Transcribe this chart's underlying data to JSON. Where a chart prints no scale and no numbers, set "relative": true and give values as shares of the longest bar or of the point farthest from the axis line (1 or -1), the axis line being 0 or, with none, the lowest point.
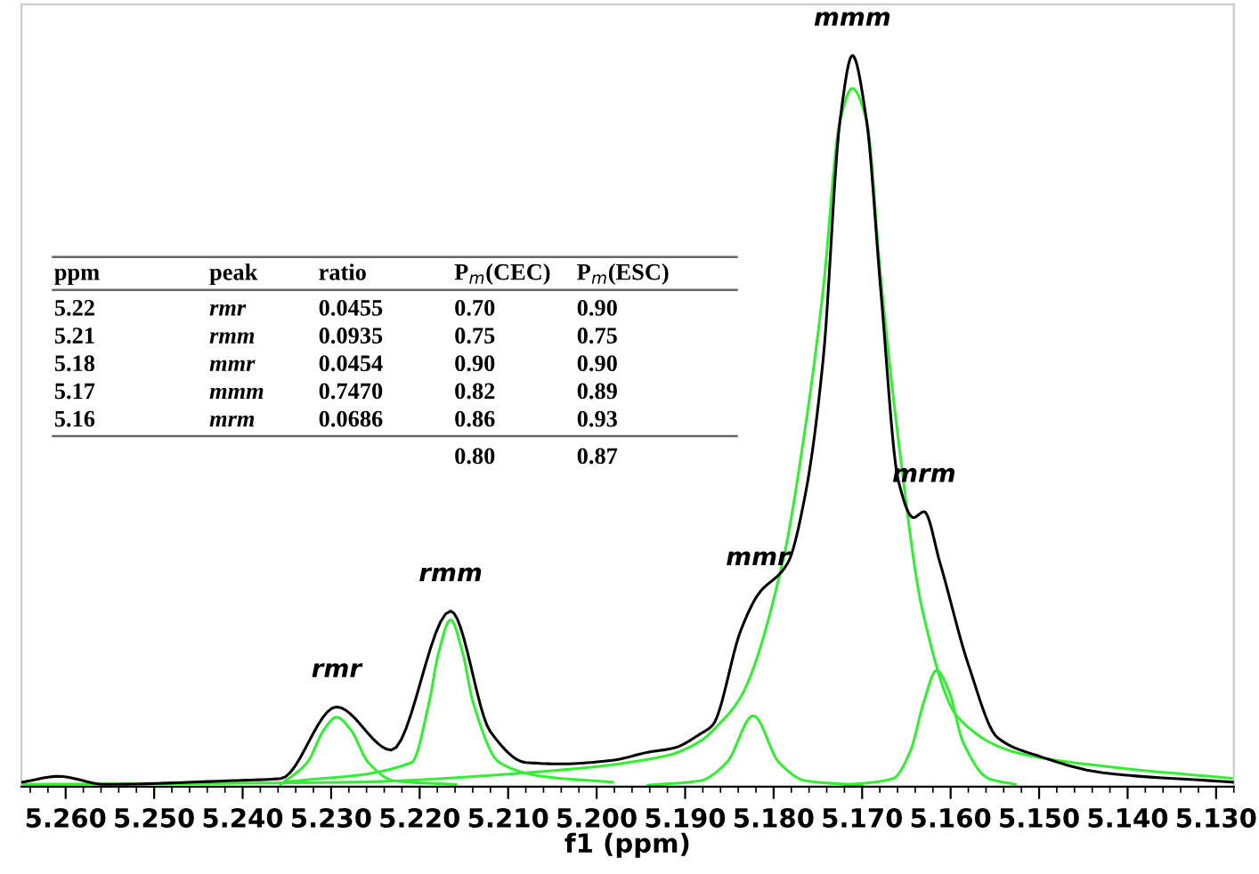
{
  "chart_data": {
    "type": "line",
    "relative": true,
    "xlabel": "f1 (ppm)",
    "xlim": [
      5.265,
      5.128
    ],
    "xticks": [
      {
        "value": 5.26,
        "label": "5.260"
      },
      {
        "value": 5.25,
        "label": "5.250"
      },
      {
        "value": 5.24,
        "label": "5.240"
      },
      {
        "value": 5.23,
        "label": "5.230"
      },
      {
        "value": 5.22,
        "label": "5.220"
      },
      {
        "value": 5.21,
        "label": "5.210"
      },
      {
        "value": 5.2,
        "label": "5.200"
      },
      {
        "value": 5.19,
        "label": "5.190"
      },
      {
        "value": 5.18,
        "label": "5.180"
      },
      {
        "value": 5.17,
        "label": "5.170"
      },
      {
        "value": 5.16,
        "label": "5.160"
      },
      {
        "value": 5.15,
        "label": "5.150"
      },
      {
        "value": 5.14,
        "label": "5.140"
      },
      {
        "value": 5.13,
        "label": "5.130"
      }
    ],
    "tick_labels": "x",
    "grid": false,
    "marker": "none",
    "line_style": "solid",
    "series": [
      {
        "color": "#000000",
        "x": [
          5.2649,
          5.2608,
          5.2555,
          5.2416,
          5.2357,
          5.2294,
          5.2232,
          5.2165,
          5.212,
          5.208,
          5.2041,
          5.1982,
          5.1942,
          5.1912,
          5.1883,
          5.1869,
          5.1837,
          5.1818,
          5.1784,
          5.1764,
          5.1744,
          5.1725,
          5.1711,
          5.1695,
          5.1679,
          5.1659,
          5.1642,
          5.163,
          5.1612,
          5.158,
          5.1547,
          5.1501,
          5.1428,
          5.128
        ],
        "values": [
          0.006,
          0.014,
          0.003,
          0.008,
          0.011,
          0.109,
          0.05,
          0.24,
          0.075,
          0.033,
          0.031,
          0.036,
          0.047,
          0.053,
          0.072,
          0.084,
          0.214,
          0.262,
          0.306,
          0.401,
          0.585,
          0.911,
          1.0,
          0.911,
          0.68,
          0.418,
          0.368,
          0.376,
          0.306,
          0.167,
          0.067,
          0.042,
          0.019,
          0.006
        ]
      },
      {
        "color": "#33ee33",
        "x": [
          5.2357,
          5.2327,
          5.2308,
          5.2294,
          5.2278,
          5.2258,
          5.2229,
          5.2159
        ],
        "values": [
          0.003,
          0.033,
          0.078,
          0.095,
          0.078,
          0.033,
          0.008,
          0.003
        ]
      },
      {
        "color": "#33ee33",
        "x": [
          5.2357,
          5.2209,
          5.2189,
          5.2179,
          5.2165,
          5.2151,
          5.214,
          5.211,
          5.2061,
          5.1982
        ],
        "values": [
          0.005,
          0.033,
          0.117,
          0.181,
          0.228,
          0.181,
          0.117,
          0.033,
          0.014,
          0.006
        ]
      },
      {
        "color": "#33ee33",
        "x": [
          5.2649,
          5.2278,
          5.208,
          5.1922,
          5.1883,
          5.1862,
          5.1837,
          5.179,
          5.1764,
          5.1744,
          5.1725,
          5.1711,
          5.1695,
          5.1679,
          5.1659,
          5.1632,
          5.1592,
          5.1527,
          5.1428,
          5.128
        ],
        "values": [
          0.003,
          0.006,
          0.019,
          0.042,
          0.062,
          0.085,
          0.123,
          0.306,
          0.493,
          0.68,
          0.911,
          0.955,
          0.911,
          0.696,
          0.474,
          0.242,
          0.095,
          0.047,
          0.028,
          0.011
        ]
      },
      {
        "color": "#33ee33",
        "x": [
          5.1942,
          5.1883,
          5.1853,
          5.1823,
          5.1794,
          5.1764,
          5.17
        ],
        "values": [
          0.002,
          0.008,
          0.033,
          0.097,
          0.033,
          0.008,
          0.002
        ]
      },
      {
        "color": "#33ee33",
        "x": [
          5.172,
          5.1665,
          5.1646,
          5.163,
          5.1616,
          5.1602,
          5.1586,
          5.1557,
          5.1527
        ],
        "values": [
          0.002,
          0.011,
          0.047,
          0.117,
          0.159,
          0.131,
          0.061,
          0.011,
          0.003
        ]
      }
    ],
    "annotations": [
      {
        "text": "rmr",
        "x": 5.2294,
        "y": 0.109
      },
      {
        "text": "rmm",
        "x": 5.2165,
        "y": 0.24
      },
      {
        "text": "mmr",
        "x": 5.1818,
        "y": 0.262
      },
      {
        "text": "mmm",
        "x": 5.1711,
        "y": 1.0
      },
      {
        "text": "mrm",
        "x": 5.163,
        "y": 0.376
      },
      "ppm\tpeak\tratio\tP$_{m}$(CEC)\tP$_{m}$(ESC)",
      "5.22\trmr\t0.0455\t0.70\t0.90",
      "5.21\trmm\t0.0935\t0.75\t0.75",
      "5.18\tmmr\t0.0454\t0.90\t0.90",
      "5.17\tmmm\t0.7470\t0.82\t0.89",
      "5.16\tmrm\t0.0686\t0.86\t0.93",
      "\t\t\t0.80\t0.87"
    ]
  }
}
